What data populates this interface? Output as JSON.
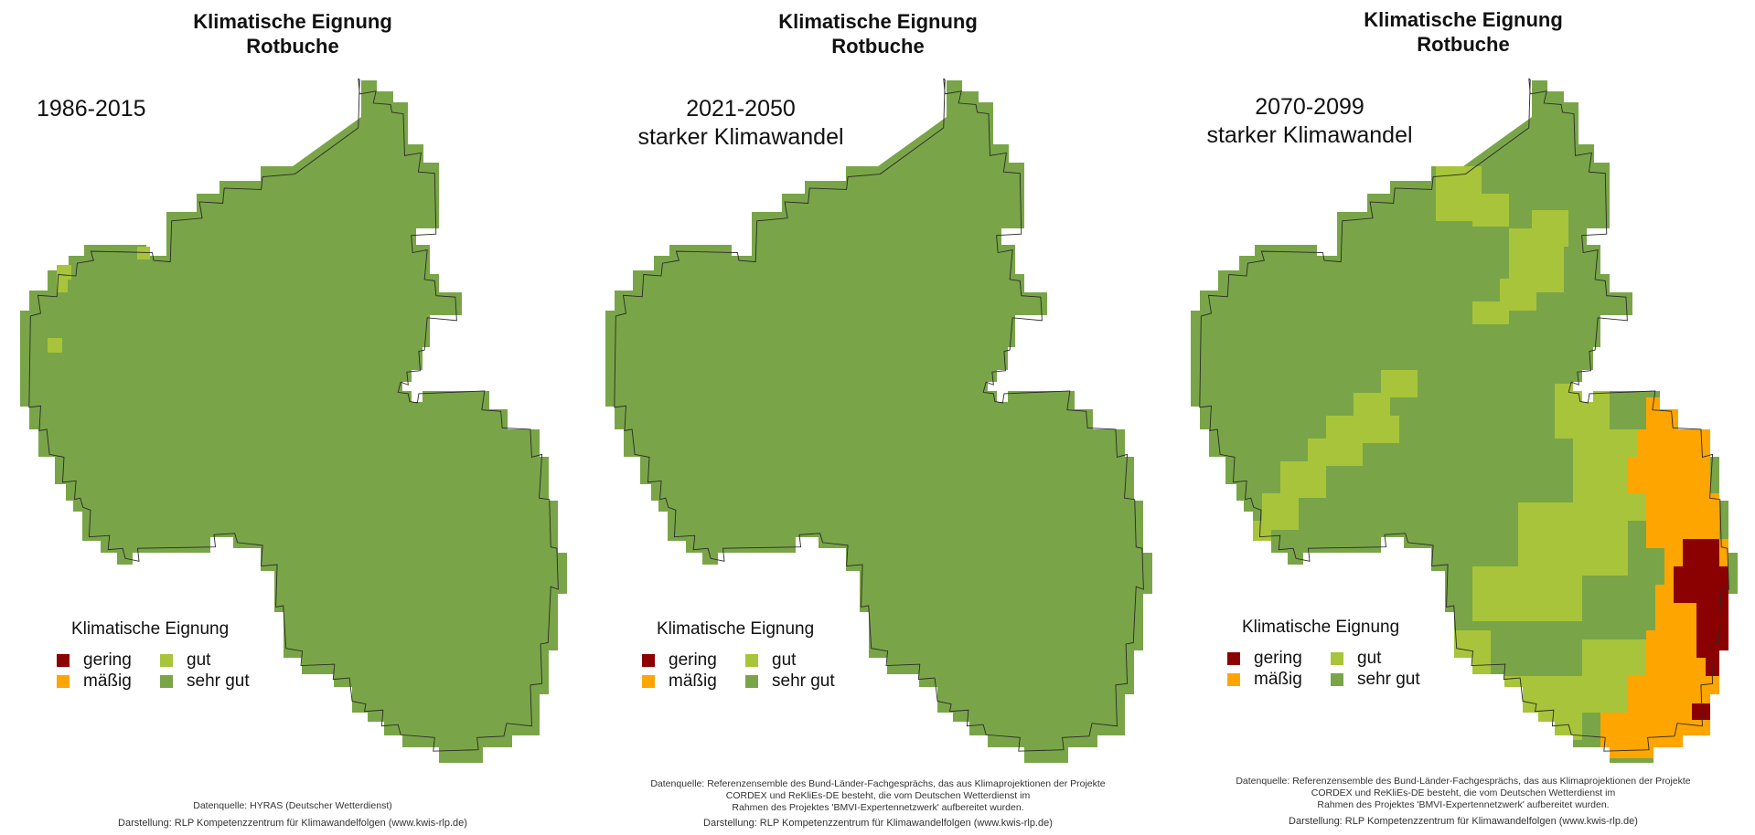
{
  "palette": {
    "gering": "#8b0000",
    "maessig": "#ffa500",
    "gut": "#a8c43a",
    "sehr_gut": "#79a548",
    "outline": "#2a2a2a"
  },
  "legend": {
    "title": "Klimatische Eignung",
    "items": [
      {
        "label": "gering",
        "color": "#8b0000",
        "icon": "square-swatch"
      },
      {
        "label": "mäßig",
        "color": "#ffa500",
        "icon": "square-swatch"
      },
      {
        "label": "gut",
        "color": "#a8c43a",
        "icon": "square-swatch"
      },
      {
        "label": "sehr gut",
        "color": "#79a548",
        "icon": "square-swatch"
      }
    ]
  },
  "credit": "Darstellung: RLP Kompetenzzentrum für Klimawandelfolgen (www.kwis-rlp.de)",
  "panels": [
    {
      "title_line1": "Klimatische Eignung",
      "title_line2": "Rotbuche",
      "period": "1986-2015",
      "scenario": "",
      "source": [
        "Datenquelle: HYRAS (Deutscher Wetterdienst)"
      ]
    },
    {
      "title_line1": "Klimatische Eignung",
      "title_line2": "Rotbuche",
      "period": "2021-2050",
      "scenario": "starker Klimawandel",
      "source": [
        "Datenquelle: Referenzensemble des Bund-Länder-Fachgesprächs, das aus Klimaprojektionen der Projekte",
        "CORDEX und ReKliEs-DE besteht, die vom Deutschen Wetterdienst im",
        "Rahmen des Projektes 'BMVI-Expertennetzwerk' aufbereitet wurden."
      ]
    },
    {
      "title_line1": "Klimatische Eignung",
      "title_line2": "Rotbuche",
      "period": "2070-2099",
      "scenario": "starker Klimawandel",
      "source": [
        "Datenquelle: Referenzensemble des Bund-Länder-Fachgesprächs, das aus Klimaprojektionen der Projekte",
        "CORDEX und ReKliEs-DE besteht, die vom Deutschen Wetterdienst im",
        "Rahmen des Projektes 'BMVI-Expertennetzwerk' aufbereitet wurden."
      ]
    }
  ]
}
